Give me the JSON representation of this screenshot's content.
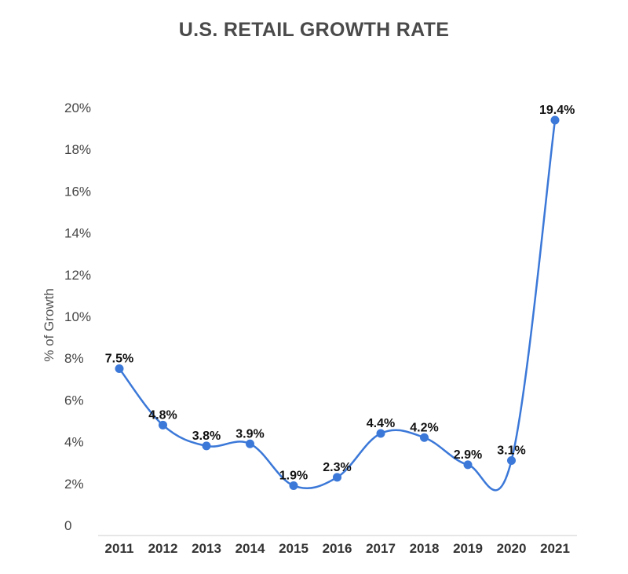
{
  "chart_data": {
    "type": "line",
    "title": "U.S. RETAIL GROWTH RATE",
    "xlabel": "",
    "ylabel": "% of Growth",
    "categories": [
      "2011",
      "2012",
      "2013",
      "2014",
      "2015",
      "2016",
      "2017",
      "2018",
      "2019",
      "2020",
      "2021"
    ],
    "series": [
      {
        "values": [
          7.5,
          4.8,
          3.8,
          3.9,
          1.9,
          2.3,
          4.4,
          4.2,
          2.9,
          3.1,
          19.4
        ],
        "data_labels": [
          "7.5%",
          "4.8%",
          "3.8%",
          "3.9%",
          "1.9%",
          "2.3%",
          "4.4%",
          "4.2%",
          "2.9%",
          "3.1%",
          "19.4%"
        ],
        "color": "#3b78d8"
      }
    ],
    "ylim": [
      0,
      20
    ],
    "yticks": [
      0,
      2,
      4,
      6,
      8,
      10,
      12,
      14,
      16,
      18,
      20
    ],
    "ytick_labels": [
      "0",
      "2%",
      "4%",
      "6%",
      "8%",
      "10%",
      "12%",
      "14%",
      "16%",
      "18%",
      "20%"
    ],
    "grid": false,
    "smooth": true,
    "axis_color": "#cccccc"
  }
}
